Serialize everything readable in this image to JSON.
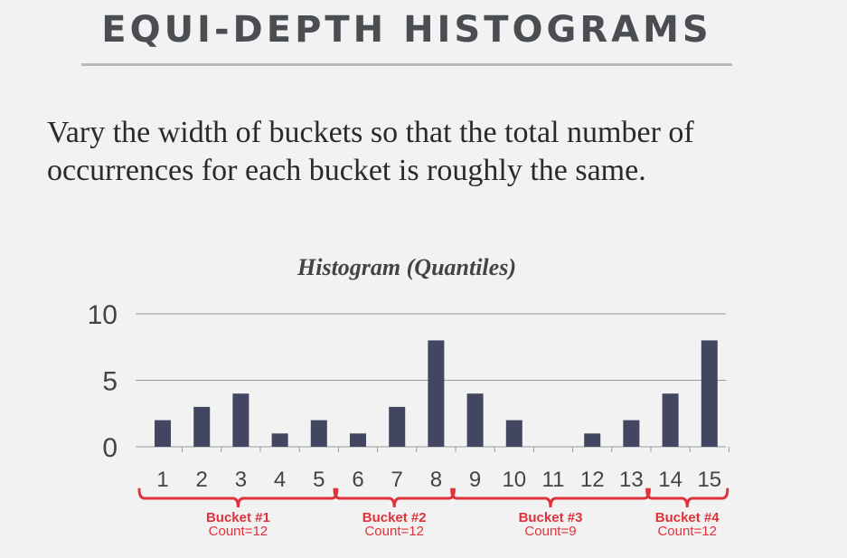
{
  "slide": {
    "title": "EQUI-DEPTH HISTOGRAMS",
    "body": "Vary the width of buckets so that the total number of occurrences for each bucket is roughly the same."
  },
  "colors": {
    "bar": "#434661",
    "bracket": "#e0323a",
    "grid": "#9a9a9a",
    "title": "#4a4d52"
  },
  "chart_data": {
    "type": "bar",
    "title": "Histogram (Quantiles)",
    "categories": [
      "1",
      "2",
      "3",
      "4",
      "5",
      "6",
      "7",
      "8",
      "9",
      "10",
      "11",
      "12",
      "13",
      "14",
      "15"
    ],
    "values": [
      2,
      3,
      4,
      1,
      2,
      1,
      3,
      8,
      4,
      2,
      0,
      1,
      2,
      4,
      8
    ],
    "yticks": [
      "0",
      "5",
      "10"
    ],
    "ylim": [
      0,
      10
    ],
    "grid": true,
    "buckets": [
      {
        "label": "Bucket #1",
        "count": "Count=12",
        "from": 1,
        "to": 5
      },
      {
        "label": "Bucket #2",
        "count": "Count=12",
        "from": 6,
        "to": 8
      },
      {
        "label": "Bucket #3",
        "count": "Count=9",
        "from": 9,
        "to": 13
      },
      {
        "label": "Bucket #4",
        "count": "Count=12",
        "from": 14,
        "to": 15
      }
    ]
  }
}
